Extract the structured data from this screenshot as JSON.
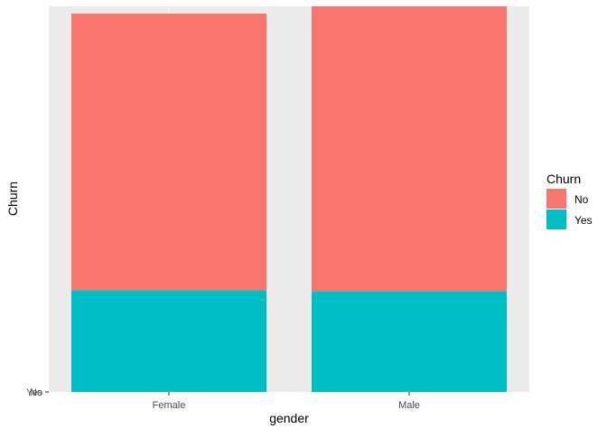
{
  "chart_data": {
    "type": "bar",
    "stacked": true,
    "categories": [
      "Female",
      "Male"
    ],
    "series": [
      {
        "name": "No",
        "values": [
          2549,
          2625
        ]
      },
      {
        "name": "Yes",
        "values": [
          939,
          930
        ]
      }
    ],
    "colors": {
      "No": "#F8766D",
      "Yes": "#00BFC4"
    },
    "panel_background": "#EBEBEB",
    "grid_color": "#FFFFFF",
    "xlabel": "gender",
    "ylabel": "Churn",
    "y_tick_labels": [
      "No",
      "Yes"
    ],
    "legend": {
      "title": "Churn",
      "placement": "right"
    },
    "grid": true
  }
}
